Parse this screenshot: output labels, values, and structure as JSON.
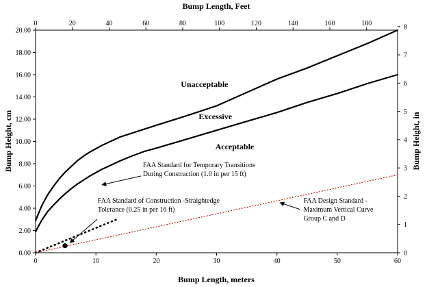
{
  "chart_data": {
    "type": "line",
    "title": "",
    "xlabel": "Bump Length, meters",
    "ylabel": "Bump Height, cm",
    "x2label": "Bump Length, Feet",
    "y2label": "Bump Height, in",
    "xlim": [
      0,
      60
    ],
    "ylim": [
      0,
      20
    ],
    "x2lim": [
      0,
      196.85
    ],
    "y2lim": [
      0,
      7.874
    ],
    "x_ticks": [
      "0",
      "10",
      "20",
      "30",
      "40",
      "50",
      "60"
    ],
    "y_ticks": [
      "0.00",
      "2.00",
      "4.00",
      "6.00",
      "8.00",
      "10.00",
      "12.00",
      "14.00",
      "16.00",
      "18.00",
      "20.00"
    ],
    "x2_ticks": [
      "0",
      "20",
      "40",
      "60",
      "80",
      "100",
      "120",
      "140",
      "160",
      "180"
    ],
    "y2_ticks": [
      "0",
      "1",
      "2",
      "3",
      "4",
      "5",
      "6",
      "7",
      "8"
    ],
    "grid": false,
    "series": [
      {
        "key": "upper",
        "style": "solid",
        "color": "#000000",
        "x": [
          0,
          1,
          2,
          3,
          4,
          5,
          6,
          7,
          8,
          9,
          10,
          11,
          12,
          13,
          14,
          16,
          18,
          20,
          25,
          30,
          35,
          40,
          45,
          50,
          55,
          60
        ],
        "y": [
          2.9,
          4.2,
          5.2,
          6.0,
          6.7,
          7.3,
          7.8,
          8.3,
          8.7,
          9.05,
          9.35,
          9.65,
          9.9,
          10.15,
          10.4,
          10.75,
          11.1,
          11.45,
          12.3,
          13.2,
          14.4,
          15.6,
          16.6,
          17.7,
          18.8,
          20.0
        ]
      },
      {
        "key": "lower",
        "style": "solid",
        "color": "#000000",
        "x": [
          0,
          1,
          2,
          3,
          4,
          5,
          6,
          7,
          8,
          9,
          10,
          11,
          12,
          13,
          14,
          16,
          18,
          20,
          25,
          30,
          35,
          40,
          45,
          50,
          55,
          60
        ],
        "y": [
          1.9,
          2.9,
          3.7,
          4.3,
          4.85,
          5.35,
          5.8,
          6.2,
          6.55,
          6.9,
          7.2,
          7.5,
          7.75,
          8.0,
          8.25,
          8.7,
          9.1,
          9.4,
          10.2,
          11.0,
          11.8,
          12.6,
          13.5,
          14.3,
          15.2,
          16.0
        ]
      },
      {
        "key": "faa_temporary",
        "style": "dotted-thick",
        "color": "#000000",
        "x": [
          0,
          11.4,
          13.7
        ],
        "y": [
          0,
          2.54,
          3.05
        ]
      },
      {
        "key": "faa_design",
        "style": "dotted-thin",
        "color": "#b01818",
        "x": [
          0,
          60
        ],
        "y": [
          0,
          7.0
        ]
      }
    ],
    "points": [
      {
        "key": "straightedge",
        "x": 4.88,
        "y": 0.635,
        "color": "#000000"
      }
    ],
    "region_labels": [
      {
        "text": "Unacceptable",
        "x": 28,
        "y": 14.9
      },
      {
        "text": "Excessive",
        "x": 29.8,
        "y": 12.0
      },
      {
        "text": "Acceptable",
        "x": 33,
        "y": 9.3
      }
    ],
    "annotations": [
      {
        "lines": [
          "FAA Standard for Temporary Transitions",
          "During Construction (1.0 in per 15 ft)"
        ],
        "text_x": 17.8,
        "text_y": 7.7,
        "arrow_from": [
          17.5,
          6.9
        ],
        "arrow_to": [
          11.0,
          6.1
        ]
      },
      {
        "lines": [
          "FAA Standard of Construction -Straightedge",
          "Tolerance (0.25 in per 16 ft)"
        ],
        "text_x": 10.3,
        "text_y": 4.5,
        "arrow_from": [
          10.2,
          3.0
        ],
        "arrow_to": [
          5.7,
          0.9
        ]
      },
      {
        "lines": [
          "FAA Design Standard -",
          "Maximum Vertical Curve",
          "Group C and D"
        ],
        "text_x": 44.4,
        "text_y": 4.5,
        "arrow_from": [
          43.8,
          3.9
        ],
        "arrow_to": [
          40.5,
          4.5
        ]
      }
    ]
  }
}
